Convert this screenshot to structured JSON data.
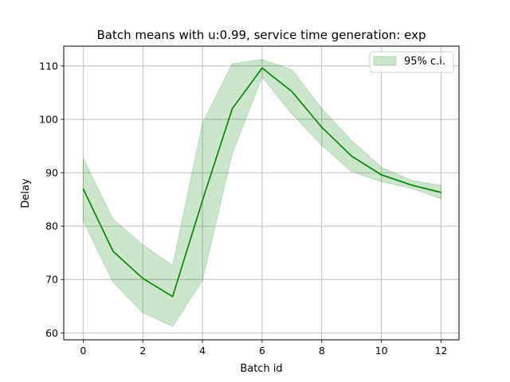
{
  "chart_data": {
    "type": "line",
    "title": "Batch means with u:0.99, service time generation: exp",
    "xlabel": "Batch id",
    "ylabel": "Delay",
    "xlim": [
      -0.65,
      12.6
    ],
    "ylim": [
      58.7,
      113.7
    ],
    "xticks": [
      0,
      2,
      4,
      6,
      8,
      10,
      12
    ],
    "yticks": [
      60,
      70,
      80,
      90,
      100,
      110
    ],
    "grid": true,
    "legend": {
      "placement": "top-right",
      "entries": [
        "95% c.i."
      ]
    },
    "colors": {
      "line": "#008000",
      "band": "#008000"
    },
    "x": [
      0,
      1,
      2,
      3,
      4,
      5,
      6,
      7,
      8,
      9,
      10,
      11,
      12
    ],
    "series": [
      {
        "values": [
          87.0,
          75.3,
          70.2,
          66.8,
          84.8,
          102.0,
          109.6,
          105.2,
          98.5,
          93.1,
          89.6,
          87.7,
          86.3
        ],
        "ci_lower": [
          81.0,
          69.5,
          63.8,
          61.2,
          69.8,
          93.6,
          107.9,
          101.0,
          95.1,
          90.2,
          88.3,
          87.1,
          85.1
        ],
        "ci_upper": [
          92.7,
          81.3,
          76.5,
          72.6,
          99.3,
          110.4,
          111.2,
          109.3,
          102.0,
          96.0,
          91.0,
          88.6,
          87.6
        ]
      }
    ]
  }
}
